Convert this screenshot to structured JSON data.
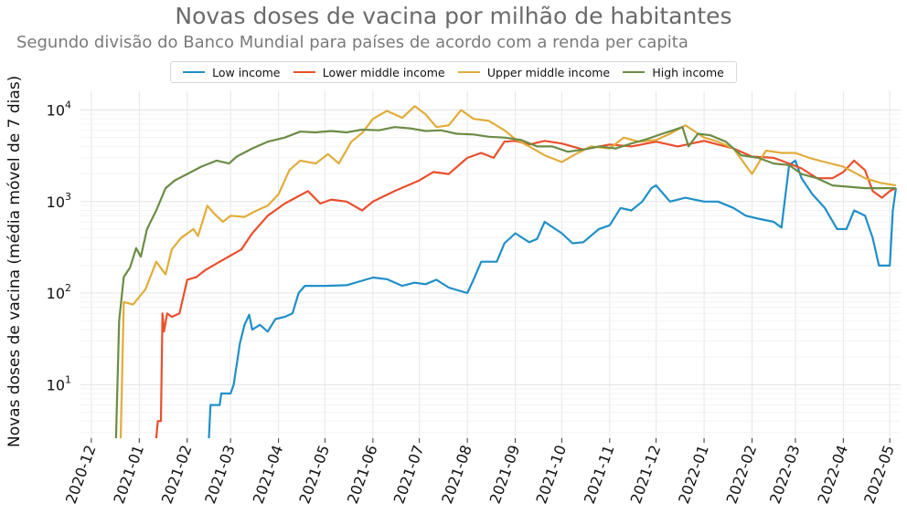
{
  "chart_data": {
    "type": "line",
    "title": "Novas doses de vacina por milhão de habitantes",
    "subtitle": "Segundo divisão do Banco Mundial para países de acordo com a renda per capita",
    "ylabel": "Novas doses de vacina (média móvel de 7 dias)",
    "xlabel": "",
    "yscale": "log",
    "ylim": [
      2.6,
      16000
    ],
    "xlim": [
      "2020-11-24",
      "2022-05-08"
    ],
    "grid": true,
    "legend_position": "top-center",
    "x_ticks": [
      "2020-12",
      "2021-01",
      "2021-02",
      "2021-03",
      "2021-04",
      "2021-05",
      "2021-06",
      "2021-07",
      "2021-08",
      "2021-09",
      "2021-10",
      "2021-11",
      "2021-12",
      "2022-01",
      "2022-02",
      "2022-03",
      "2022-04",
      "2022-05"
    ],
    "y_ticks": [
      {
        "value": 10,
        "base": "10",
        "exp": "1"
      },
      {
        "value": 100,
        "base": "10",
        "exp": "2"
      },
      {
        "value": 1000,
        "base": "10",
        "exp": "3"
      },
      {
        "value": 10000,
        "base": "10",
        "exp": "4"
      }
    ],
    "series": [
      {
        "name": "Low income",
        "color": "#1f8fc8",
        "points": [
          [
            "2021-02-15",
            2.6
          ],
          [
            "2021-02-16",
            6
          ],
          [
            "2021-02-22",
            6
          ],
          [
            "2021-02-23",
            8
          ],
          [
            "2021-03-01",
            8
          ],
          [
            "2021-03-03",
            10
          ],
          [
            "2021-03-07",
            28
          ],
          [
            "2021-03-10",
            45
          ],
          [
            "2021-03-13",
            58
          ],
          [
            "2021-03-15",
            40
          ],
          [
            "2021-03-20",
            45
          ],
          [
            "2021-03-25",
            38
          ],
          [
            "2021-03-30",
            52
          ],
          [
            "2021-04-05",
            55
          ],
          [
            "2021-04-10",
            60
          ],
          [
            "2021-04-14",
            100
          ],
          [
            "2021-04-18",
            120
          ],
          [
            "2021-05-01",
            120
          ],
          [
            "2021-05-15",
            122
          ],
          [
            "2021-06-01",
            148
          ],
          [
            "2021-06-10",
            142
          ],
          [
            "2021-06-20",
            120
          ],
          [
            "2021-06-28",
            130
          ],
          [
            "2021-07-05",
            125
          ],
          [
            "2021-07-12",
            140
          ],
          [
            "2021-07-20",
            115
          ],
          [
            "2021-08-01",
            100
          ],
          [
            "2021-08-05",
            140
          ],
          [
            "2021-08-10",
            220
          ],
          [
            "2021-08-20",
            220
          ],
          [
            "2021-08-25",
            350
          ],
          [
            "2021-09-01",
            450
          ],
          [
            "2021-09-10",
            360
          ],
          [
            "2021-09-15",
            390
          ],
          [
            "2021-09-20",
            600
          ],
          [
            "2021-10-01",
            450
          ],
          [
            "2021-10-08",
            350
          ],
          [
            "2021-10-15",
            360
          ],
          [
            "2021-10-25",
            500
          ],
          [
            "2021-11-01",
            550
          ],
          [
            "2021-11-08",
            850
          ],
          [
            "2021-11-15",
            800
          ],
          [
            "2021-11-22",
            1000
          ],
          [
            "2021-11-28",
            1400
          ],
          [
            "2021-12-01",
            1500
          ],
          [
            "2021-12-10",
            1000
          ],
          [
            "2021-12-20",
            1100
          ],
          [
            "2022-01-01",
            1000
          ],
          [
            "2022-01-10",
            1000
          ],
          [
            "2022-01-20",
            850
          ],
          [
            "2022-01-28",
            700
          ],
          [
            "2022-02-05",
            650
          ],
          [
            "2022-02-15",
            600
          ],
          [
            "2022-02-20",
            520
          ],
          [
            "2022-02-25",
            2500
          ],
          [
            "2022-03-01",
            2800
          ],
          [
            "2022-03-05",
            1800
          ],
          [
            "2022-03-12",
            1200
          ],
          [
            "2022-03-20",
            850
          ],
          [
            "2022-03-28",
            500
          ],
          [
            "2022-04-03",
            500
          ],
          [
            "2022-04-08",
            800
          ],
          [
            "2022-04-15",
            700
          ],
          [
            "2022-04-20",
            400
          ],
          [
            "2022-04-24",
            200
          ],
          [
            "2022-05-01",
            200
          ],
          [
            "2022-05-03",
            800
          ],
          [
            "2022-05-05",
            1400
          ]
        ]
      },
      {
        "name": "Lower middle income",
        "color": "#ea4f2c",
        "points": [
          [
            "2021-01-12",
            2.6
          ],
          [
            "2021-01-13",
            4
          ],
          [
            "2021-01-15",
            4
          ],
          [
            "2021-01-16",
            60
          ],
          [
            "2021-01-17",
            38
          ],
          [
            "2021-01-19",
            60
          ],
          [
            "2021-01-22",
            55
          ],
          [
            "2021-01-27",
            60
          ],
          [
            "2021-02-01",
            140
          ],
          [
            "2021-02-07",
            150
          ],
          [
            "2021-02-13",
            180
          ],
          [
            "2021-02-22",
            220
          ],
          [
            "2021-03-08",
            300
          ],
          [
            "2021-03-15",
            450
          ],
          [
            "2021-03-25",
            700
          ],
          [
            "2021-04-05",
            950
          ],
          [
            "2021-04-12",
            1100
          ],
          [
            "2021-04-20",
            1300
          ],
          [
            "2021-04-28",
            950
          ],
          [
            "2021-05-05",
            1050
          ],
          [
            "2021-05-15",
            1000
          ],
          [
            "2021-05-25",
            800
          ],
          [
            "2021-06-01",
            1000
          ],
          [
            "2021-06-15",
            1300
          ],
          [
            "2021-07-01",
            1700
          ],
          [
            "2021-07-10",
            2100
          ],
          [
            "2021-07-20",
            2000
          ],
          [
            "2021-08-01",
            3000
          ],
          [
            "2021-08-10",
            3400
          ],
          [
            "2021-08-18",
            3000
          ],
          [
            "2021-08-25",
            4500
          ],
          [
            "2021-09-01",
            4600
          ],
          [
            "2021-09-10",
            4200
          ],
          [
            "2021-09-20",
            4600
          ],
          [
            "2021-10-01",
            4300
          ],
          [
            "2021-10-15",
            3700
          ],
          [
            "2021-11-01",
            4200
          ],
          [
            "2021-11-15",
            4000
          ],
          [
            "2021-12-01",
            4500
          ],
          [
            "2021-12-15",
            4000
          ],
          [
            "2022-01-01",
            4600
          ],
          [
            "2022-01-10",
            4200
          ],
          [
            "2022-01-20",
            3800
          ],
          [
            "2022-02-01",
            3100
          ],
          [
            "2022-02-15",
            3000
          ],
          [
            "2022-02-25",
            2600
          ],
          [
            "2022-03-05",
            2300
          ],
          [
            "2022-03-15",
            1800
          ],
          [
            "2022-03-25",
            1800
          ],
          [
            "2022-04-01",
            2100
          ],
          [
            "2022-04-08",
            2800
          ],
          [
            "2022-04-15",
            2200
          ],
          [
            "2022-04-20",
            1300
          ],
          [
            "2022-04-26",
            1100
          ],
          [
            "2022-05-01",
            1300
          ],
          [
            "2022-05-05",
            1400
          ]
        ]
      },
      {
        "name": "Upper middle income",
        "color": "#e2ac3a",
        "points": [
          [
            "2020-12-20",
            2.6
          ],
          [
            "2020-12-22",
            80
          ],
          [
            "2020-12-28",
            75
          ],
          [
            "2021-01-05",
            110
          ],
          [
            "2021-01-12",
            220
          ],
          [
            "2021-01-18",
            160
          ],
          [
            "2021-01-22",
            300
          ],
          [
            "2021-01-28",
            400
          ],
          [
            "2021-02-05",
            500
          ],
          [
            "2021-02-08",
            420
          ],
          [
            "2021-02-14",
            900
          ],
          [
            "2021-02-18",
            750
          ],
          [
            "2021-02-24",
            600
          ],
          [
            "2021-03-01",
            700
          ],
          [
            "2021-03-10",
            680
          ],
          [
            "2021-03-18",
            800
          ],
          [
            "2021-03-25",
            900
          ],
          [
            "2021-04-01",
            1200
          ],
          [
            "2021-04-08",
            2200
          ],
          [
            "2021-04-15",
            2800
          ],
          [
            "2021-04-25",
            2600
          ],
          [
            "2021-05-03",
            3300
          ],
          [
            "2021-05-10",
            2600
          ],
          [
            "2021-05-18",
            4500
          ],
          [
            "2021-05-25",
            5600
          ],
          [
            "2021-06-01",
            8000
          ],
          [
            "2021-06-10",
            9800
          ],
          [
            "2021-06-20",
            8200
          ],
          [
            "2021-06-28",
            11000
          ],
          [
            "2021-07-05",
            9000
          ],
          [
            "2021-07-12",
            6500
          ],
          [
            "2021-07-20",
            6800
          ],
          [
            "2021-07-28",
            10000
          ],
          [
            "2021-08-05",
            8000
          ],
          [
            "2021-08-15",
            7600
          ],
          [
            "2021-08-25",
            6000
          ],
          [
            "2021-09-01",
            4800
          ],
          [
            "2021-09-10",
            4000
          ],
          [
            "2021-09-20",
            3200
          ],
          [
            "2021-10-01",
            2700
          ],
          [
            "2021-10-10",
            3300
          ],
          [
            "2021-10-20",
            4000
          ],
          [
            "2021-11-01",
            3800
          ],
          [
            "2021-11-10",
            5000
          ],
          [
            "2021-11-20",
            4500
          ],
          [
            "2021-12-01",
            4700
          ],
          [
            "2021-12-10",
            5500
          ],
          [
            "2021-12-20",
            6800
          ],
          [
            "2022-01-01",
            5000
          ],
          [
            "2022-01-10",
            4500
          ],
          [
            "2022-01-20",
            3800
          ],
          [
            "2022-02-01",
            2000
          ],
          [
            "2022-02-10",
            3600
          ],
          [
            "2022-02-20",
            3400
          ],
          [
            "2022-03-01",
            3400
          ],
          [
            "2022-03-10",
            3000
          ],
          [
            "2022-03-20",
            2700
          ],
          [
            "2022-04-01",
            2400
          ],
          [
            "2022-04-15",
            1800
          ],
          [
            "2022-04-25",
            1600
          ],
          [
            "2022-05-05",
            1500
          ]
        ]
      },
      {
        "name": "High income",
        "color": "#6b8c45",
        "points": [
          [
            "2020-12-17",
            2.6
          ],
          [
            "2020-12-19",
            50
          ],
          [
            "2020-12-22",
            150
          ],
          [
            "2020-12-26",
            190
          ],
          [
            "2020-12-30",
            310
          ],
          [
            "2021-01-02",
            250
          ],
          [
            "2021-01-06",
            500
          ],
          [
            "2021-01-12",
            800
          ],
          [
            "2021-01-18",
            1400
          ],
          [
            "2021-01-24",
            1700
          ],
          [
            "2021-02-01",
            2000
          ],
          [
            "2021-02-10",
            2400
          ],
          [
            "2021-02-20",
            2800
          ],
          [
            "2021-02-28",
            2600
          ],
          [
            "2021-03-05",
            3100
          ],
          [
            "2021-03-15",
            3800
          ],
          [
            "2021-03-25",
            4500
          ],
          [
            "2021-04-05",
            5000
          ],
          [
            "2021-04-15",
            5800
          ],
          [
            "2021-04-25",
            5700
          ],
          [
            "2021-05-05",
            5900
          ],
          [
            "2021-05-15",
            5700
          ],
          [
            "2021-05-25",
            6100
          ],
          [
            "2021-06-05",
            6000
          ],
          [
            "2021-06-15",
            6500
          ],
          [
            "2021-06-25",
            6300
          ],
          [
            "2021-07-05",
            5900
          ],
          [
            "2021-07-15",
            6000
          ],
          [
            "2021-07-25",
            5500
          ],
          [
            "2021-08-05",
            5400
          ],
          [
            "2021-08-15",
            5100
          ],
          [
            "2021-08-25",
            5000
          ],
          [
            "2021-09-05",
            4700
          ],
          [
            "2021-09-15",
            4000
          ],
          [
            "2021-09-25",
            4000
          ],
          [
            "2021-10-05",
            3500
          ],
          [
            "2021-10-15",
            3700
          ],
          [
            "2021-10-25",
            4000
          ],
          [
            "2021-11-05",
            3800
          ],
          [
            "2021-11-15",
            4300
          ],
          [
            "2021-11-25",
            4800
          ],
          [
            "2021-12-05",
            5500
          ],
          [
            "2021-12-12",
            6000
          ],
          [
            "2021-12-18",
            6500
          ],
          [
            "2021-12-22",
            4000
          ],
          [
            "2021-12-28",
            5500
          ],
          [
            "2022-01-05",
            5300
          ],
          [
            "2022-01-15",
            4500
          ],
          [
            "2022-01-25",
            3200
          ],
          [
            "2022-02-05",
            3000
          ],
          [
            "2022-02-15",
            2600
          ],
          [
            "2022-02-25",
            2500
          ],
          [
            "2022-03-05",
            2000
          ],
          [
            "2022-03-15",
            1800
          ],
          [
            "2022-03-25",
            1500
          ],
          [
            "2022-04-05",
            1450
          ],
          [
            "2022-04-15",
            1400
          ],
          [
            "2022-04-25",
            1400
          ],
          [
            "2022-05-05",
            1400
          ]
        ]
      }
    ]
  }
}
